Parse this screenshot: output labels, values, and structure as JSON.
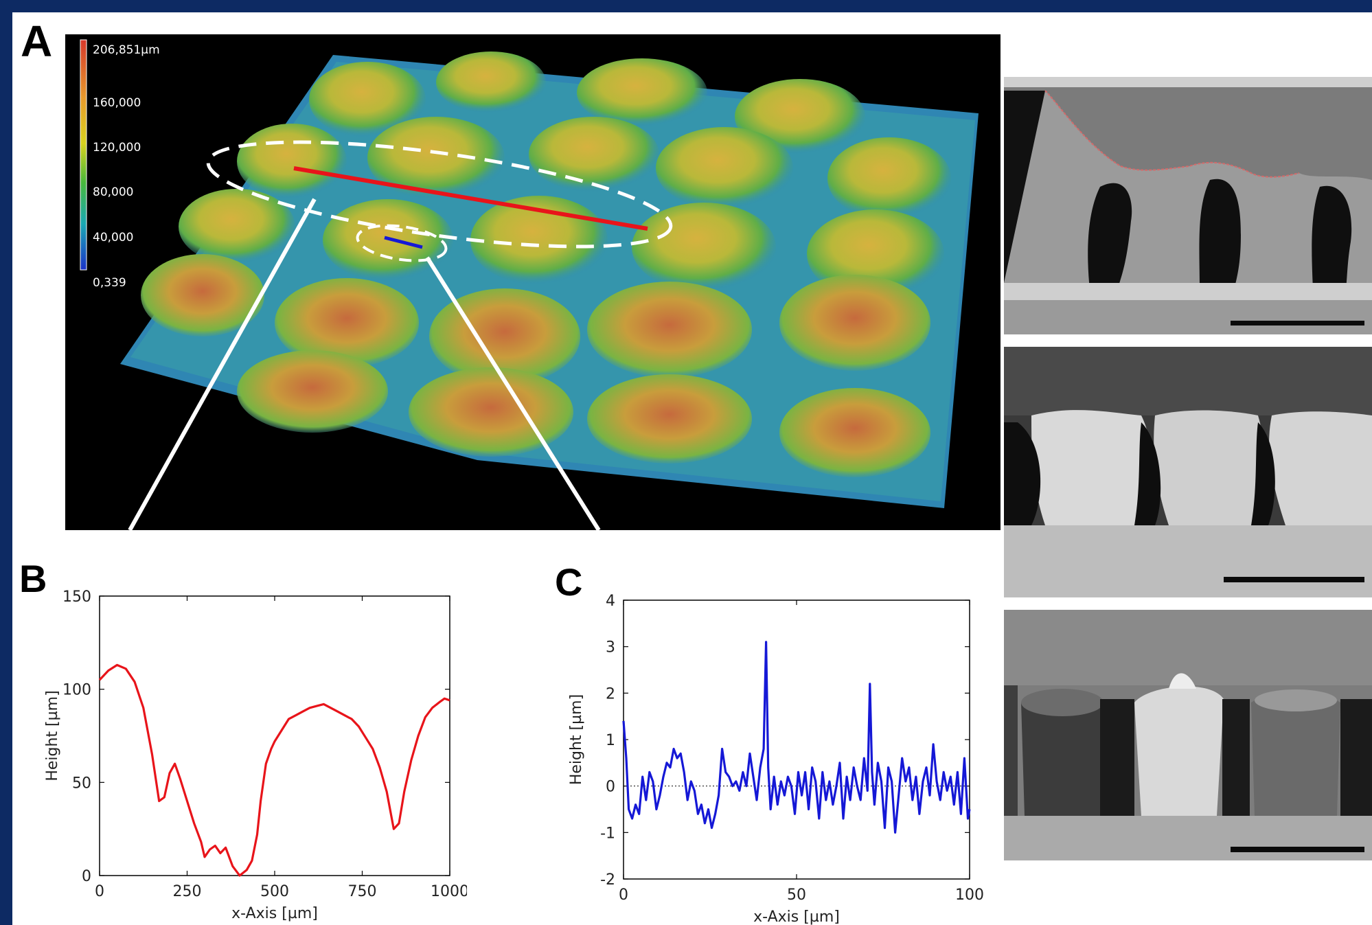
{
  "figure": {
    "panels": {
      "A": {
        "letter": "A"
      },
      "B": {
        "letter": "B"
      },
      "C": {
        "letter": "C"
      }
    },
    "colorbar": {
      "labels": [
        "206,851µm",
        "160,000",
        "120,000",
        "80,000",
        "40,000",
        "0,339"
      ]
    }
  },
  "chart_data": [
    {
      "panel": "B",
      "type": "line",
      "xlabel": "x-Axis [µm]",
      "ylabel": "Height [µm]",
      "xlim": [
        0,
        1000
      ],
      "ylim": [
        0,
        150
      ],
      "xticks": [
        0,
        250,
        500,
        750,
        1000
      ],
      "yticks": [
        0,
        50,
        100,
        150
      ],
      "color": "#e8141a",
      "series": [
        {
          "x": [
            0,
            25,
            50,
            75,
            100,
            125,
            150,
            170,
            185,
            200,
            215,
            230,
            250,
            270,
            290,
            300,
            315,
            330,
            345,
            360,
            380,
            400,
            420,
            435,
            450,
            460,
            475,
            490,
            500,
            520,
            540,
            560,
            580,
            600,
            620,
            640,
            660,
            680,
            700,
            720,
            740,
            760,
            780,
            800,
            820,
            840,
            855,
            870,
            890,
            910,
            930,
            950,
            970,
            985,
            1000
          ],
          "y": [
            105,
            110,
            113,
            111,
            104,
            90,
            65,
            40,
            42,
            55,
            60,
            52,
            40,
            28,
            18,
            10,
            14,
            16,
            12,
            15,
            5,
            0,
            3,
            8,
            22,
            40,
            60,
            68,
            72,
            78,
            84,
            86,
            88,
            90,
            91,
            92,
            90,
            88,
            86,
            84,
            80,
            74,
            68,
            58,
            45,
            25,
            28,
            45,
            62,
            75,
            85,
            90,
            93,
            95,
            94
          ]
        }
      ]
    },
    {
      "panel": "C",
      "type": "line",
      "xlabel": "x-Axis [µm]",
      "ylabel": "Height [µm]",
      "xlim": [
        0,
        100
      ],
      "ylim": [
        -2,
        4
      ],
      "xticks": [
        0,
        50,
        100
      ],
      "yticks": [
        -2,
        -1,
        0,
        1,
        2,
        3,
        4
      ],
      "baseline": 0,
      "color": "#1518d6",
      "series": [
        {
          "x": [
            0,
            0.8,
            1.5,
            2.5,
            3.5,
            4.5,
            5.5,
            6.5,
            7.5,
            8.5,
            9.5,
            10.5,
            11.5,
            12.5,
            13.5,
            14.5,
            15.5,
            16.5,
            17.5,
            18.5,
            19.5,
            20.5,
            21.5,
            22.5,
            23.5,
            24.5,
            25.5,
            26.5,
            27.5,
            28.5,
            29.5,
            30.5,
            31.5,
            32.5,
            33.5,
            34.5,
            35.5,
            36.5,
            37.5,
            38.5,
            39.5,
            40.5,
            41.2,
            41.8,
            42.5,
            43.5,
            44.5,
            45.5,
            46.5,
            47.5,
            48.5,
            49.5,
            50.5,
            51.5,
            52.5,
            53.5,
            54.5,
            55.5,
            56.5,
            57.5,
            58.5,
            59.5,
            60.5,
            61.5,
            62.5,
            63.5,
            64.5,
            65.5,
            66.5,
            67.5,
            68.5,
            69.5,
            70.5,
            71.2,
            71.8,
            72.5,
            73.5,
            74.5,
            75.5,
            76.5,
            77.5,
            78.5,
            79.5,
            80.5,
            81.5,
            82.5,
            83.5,
            84.5,
            85.5,
            86.5,
            87.5,
            88.5,
            89.5,
            90.5,
            91.5,
            92.5,
            93.5,
            94.5,
            95.5,
            96.5,
            97.5,
            98.5,
            99.5,
            100
          ],
          "y": [
            1.4,
            0.6,
            -0.5,
            -0.7,
            -0.4,
            -0.6,
            0.2,
            -0.3,
            0.3,
            0.1,
            -0.5,
            -0.2,
            0.2,
            0.5,
            0.4,
            0.8,
            0.6,
            0.7,
            0.3,
            -0.3,
            0.1,
            -0.1,
            -0.6,
            -0.4,
            -0.8,
            -0.5,
            -0.9,
            -0.6,
            -0.2,
            0.8,
            0.3,
            0.2,
            0.0,
            0.1,
            -0.1,
            0.3,
            0.0,
            0.7,
            0.2,
            -0.3,
            0.4,
            0.8,
            3.1,
            0.4,
            -0.5,
            0.2,
            -0.4,
            0.1,
            -0.2,
            0.2,
            0.0,
            -0.6,
            0.3,
            -0.2,
            0.3,
            -0.5,
            0.4,
            0.1,
            -0.7,
            0.3,
            -0.3,
            0.1,
            -0.4,
            0.0,
            0.5,
            -0.7,
            0.2,
            -0.3,
            0.4,
            0.0,
            -0.3,
            0.6,
            -0.1,
            2.2,
            0.3,
            -0.4,
            0.5,
            0.1,
            -0.9,
            0.4,
            0.1,
            -1.0,
            -0.2,
            0.6,
            0.1,
            0.4,
            -0.3,
            0.2,
            -0.6,
            0.1,
            0.4,
            -0.2,
            0.9,
            0.1,
            -0.3,
            0.3,
            -0.1,
            0.2,
            -0.4,
            0.3,
            -0.6,
            0.6,
            -0.7,
            -0.5
          ]
        }
      ]
    }
  ]
}
